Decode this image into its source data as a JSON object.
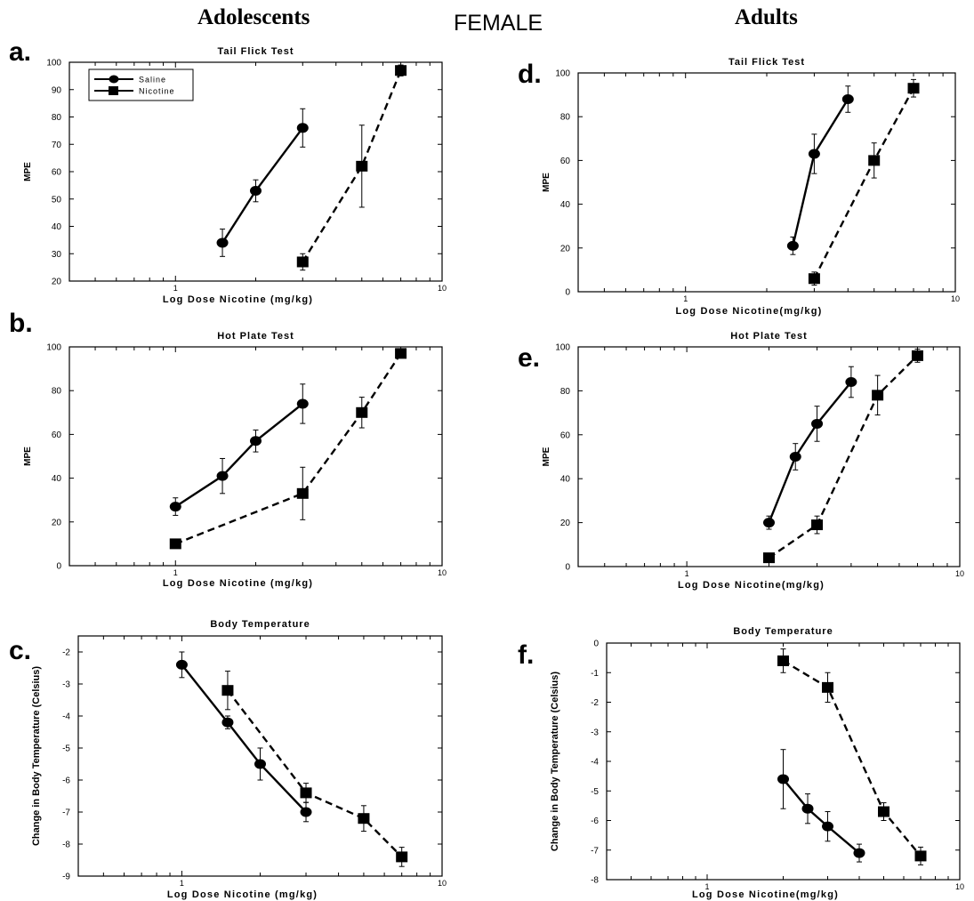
{
  "headings": {
    "left": "Adolescents",
    "center": "FEMALE",
    "right": "Adults"
  },
  "chart_data": [
    {
      "panel": "a.",
      "type": "line",
      "title": "Tail Flick Test",
      "xlabel": "Log Dose Nicotine (mg/kg)",
      "ylabel": "MPE",
      "xscale": "log",
      "xlim": [
        0.4,
        10
      ],
      "ylim": [
        20,
        100
      ],
      "xtick_labels": [
        {
          "value": 1,
          "label": "1"
        },
        {
          "value": 10,
          "label": "10"
        }
      ],
      "yticks": [
        20,
        30,
        40,
        50,
        60,
        70,
        80,
        90,
        100
      ],
      "legend": {
        "position": "top-left",
        "entries": [
          "Saline",
          "Nicotine"
        ]
      },
      "series": [
        {
          "name": "Saline",
          "marker": "circle",
          "linestyle": "solid",
          "x": [
            1.5,
            2.0,
            3.0
          ],
          "y": [
            34,
            53,
            76
          ],
          "err": [
            5,
            4,
            7
          ]
        },
        {
          "name": "Nicotine",
          "marker": "square",
          "linestyle": "dashed",
          "x": [
            3.0,
            5.0,
            7.0
          ],
          "y": [
            27,
            62,
            97
          ],
          "err": [
            3,
            15,
            2
          ]
        }
      ]
    },
    {
      "panel": "b.",
      "type": "line",
      "title": "Hot Plate Test",
      "xlabel": "Log Dose Nicotine (mg/kg)",
      "ylabel": "MPE",
      "xscale": "log",
      "xlim": [
        0.4,
        10
      ],
      "ylim": [
        0,
        100
      ],
      "xtick_labels": [
        {
          "value": 1,
          "label": "1"
        },
        {
          "value": 10,
          "label": "10"
        }
      ],
      "yticks": [
        0,
        20,
        40,
        60,
        80,
        100
      ],
      "series": [
        {
          "name": "Saline",
          "marker": "circle",
          "linestyle": "solid",
          "x": [
            1.0,
            1.5,
            2.0,
            3.0
          ],
          "y": [
            27,
            41,
            57,
            74
          ],
          "err": [
            4,
            8,
            5,
            9
          ]
        },
        {
          "name": "Nicotine",
          "marker": "square",
          "linestyle": "dashed",
          "x": [
            1.0,
            3.0,
            5.0,
            7.0
          ],
          "y": [
            10,
            33,
            70,
            97
          ],
          "err": [
            2,
            12,
            7,
            2
          ]
        }
      ]
    },
    {
      "panel": "c.",
      "type": "line",
      "title": "Body Temperature",
      "xlabel": "Log Dose Nicotine (mg/kg)",
      "ylabel": "Change in Body Temperature (Celsius)",
      "xscale": "log",
      "xlim": [
        0.4,
        10
      ],
      "ylim": [
        -9,
        -1.5
      ],
      "xtick_labels": [
        {
          "value": 1,
          "label": "1"
        },
        {
          "value": 10,
          "label": "10"
        }
      ],
      "yticks": [
        -9,
        -8,
        -7,
        -6,
        -5,
        -4,
        -3,
        -2
      ],
      "series": [
        {
          "name": "Saline",
          "marker": "circle",
          "linestyle": "solid",
          "x": [
            1.0,
            1.5,
            2.0,
            3.0
          ],
          "y": [
            -2.4,
            -4.2,
            -5.5,
            -7.0
          ],
          "err": [
            0.4,
            0.2,
            0.5,
            0.3
          ]
        },
        {
          "name": "Nicotine",
          "marker": "square",
          "linestyle": "dashed",
          "x": [
            1.5,
            3.0,
            5.0,
            7.0
          ],
          "y": [
            -3.2,
            -6.4,
            -7.2,
            -8.4
          ],
          "err": [
            0.6,
            0.3,
            0.4,
            0.3
          ]
        }
      ]
    },
    {
      "panel": "d.",
      "type": "line",
      "title": "Tail Flick Test",
      "xlabel": "Log Dose Nicotine(mg/kg)",
      "ylabel": "MPE",
      "xscale": "log",
      "xlim": [
        0.4,
        10
      ],
      "ylim": [
        0,
        100
      ],
      "xtick_labels": [
        {
          "value": 1,
          "label": "1"
        },
        {
          "value": 10,
          "label": "10"
        }
      ],
      "yticks": [
        0,
        20,
        40,
        60,
        80,
        100
      ],
      "series": [
        {
          "name": "Saline",
          "marker": "circle",
          "linestyle": "solid",
          "x": [
            2.5,
            3.0,
            4.0
          ],
          "y": [
            21,
            63,
            88
          ],
          "err": [
            4,
            9,
            6
          ]
        },
        {
          "name": "Nicotine",
          "marker": "square",
          "linestyle": "dashed",
          "x": [
            3.0,
            5.0,
            7.0
          ],
          "y": [
            6,
            60,
            93
          ],
          "err": [
            3,
            8,
            4
          ]
        }
      ]
    },
    {
      "panel": "e.",
      "type": "line",
      "title": "Hot Plate Test",
      "xlabel": "Log Dose Nicotine(mg/kg)",
      "ylabel": "MPE",
      "xscale": "log",
      "xlim": [
        0.4,
        10
      ],
      "ylim": [
        0,
        100
      ],
      "xtick_labels": [
        {
          "value": 1,
          "label": "1"
        },
        {
          "value": 10,
          "label": "10"
        }
      ],
      "yticks": [
        0,
        20,
        40,
        60,
        80,
        100
      ],
      "series": [
        {
          "name": "Saline",
          "marker": "circle",
          "linestyle": "solid",
          "x": [
            2.0,
            2.5,
            3.0,
            4.0
          ],
          "y": [
            20,
            50,
            65,
            84
          ],
          "err": [
            3,
            6,
            8,
            7
          ]
        },
        {
          "name": "Nicotine",
          "marker": "square",
          "linestyle": "dashed",
          "x": [
            2.0,
            3.0,
            5.0,
            7.0
          ],
          "y": [
            4,
            19,
            78,
            96
          ],
          "err": [
            2,
            4,
            9,
            3
          ]
        }
      ]
    },
    {
      "panel": "f.",
      "type": "line",
      "title": "Body Temperature",
      "xlabel": "Log Dose Nicotine(mg/kg)",
      "ylabel": "Change in Body Temperature (Celsius)",
      "xscale": "log",
      "xlim": [
        0.4,
        10
      ],
      "ylim": [
        -8,
        0
      ],
      "xtick_labels": [
        {
          "value": 1,
          "label": "1"
        },
        {
          "value": 10,
          "label": "10"
        }
      ],
      "yticks": [
        -8,
        -7,
        -6,
        -5,
        -4,
        -3,
        -2,
        -1,
        0
      ],
      "series": [
        {
          "name": "Saline",
          "marker": "circle",
          "linestyle": "solid",
          "x": [
            2.0,
            2.5,
            3.0,
            4.0
          ],
          "y": [
            -4.6,
            -5.6,
            -6.2,
            -7.1
          ],
          "err": [
            1.0,
            0.5,
            0.5,
            0.3
          ]
        },
        {
          "name": "Nicotine",
          "marker": "square",
          "linestyle": "dashed",
          "x": [
            2.0,
            3.0,
            5.0,
            7.0
          ],
          "y": [
            -0.6,
            -1.5,
            -5.7,
            -7.2
          ],
          "err": [
            0.4,
            0.5,
            0.3,
            0.3
          ]
        }
      ]
    }
  ]
}
